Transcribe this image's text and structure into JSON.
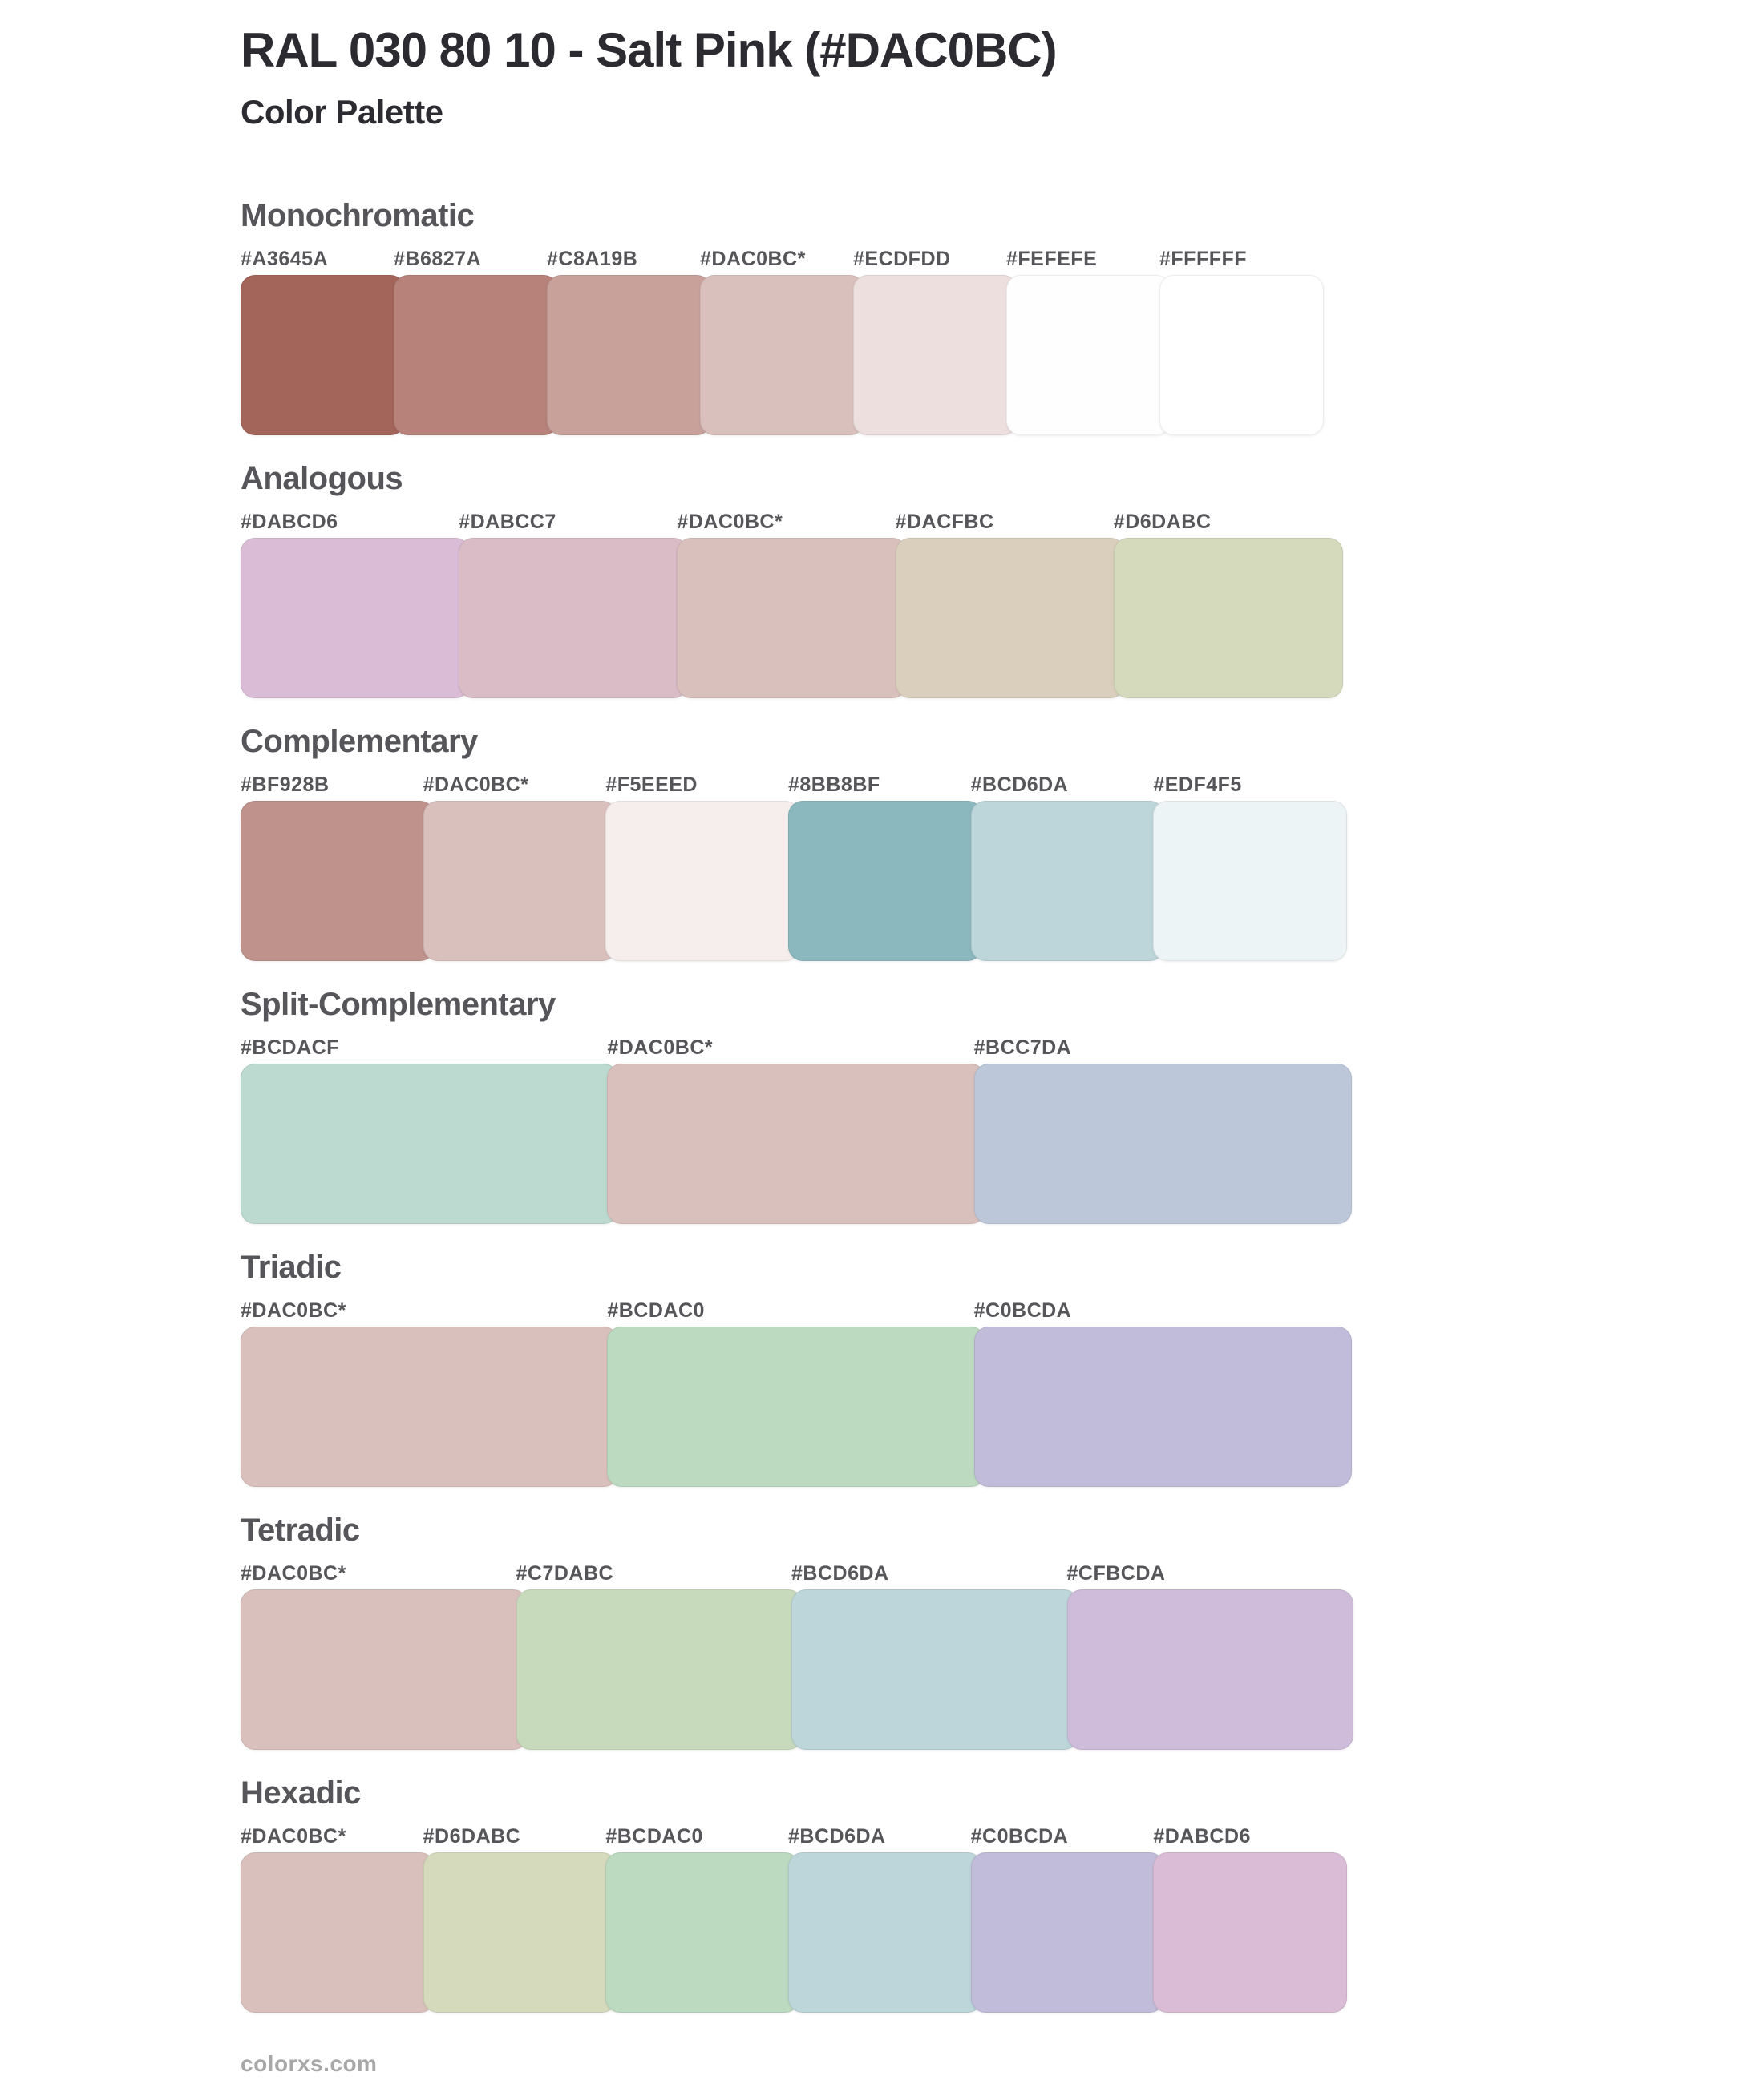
{
  "header": {
    "title": "RAL 030 80 10 - Salt Pink (#DAC0BC)",
    "subtitle": "Color Palette"
  },
  "base_color": "#DAC0BC",
  "sections": [
    {
      "name": "Monochromatic",
      "colors": [
        {
          "label": "#A3645A",
          "hex": "#A3645A"
        },
        {
          "label": "#B6827A",
          "hex": "#B6827A"
        },
        {
          "label": "#C8A19B",
          "hex": "#C8A19B"
        },
        {
          "label": "#DAC0BC*",
          "hex": "#DAC0BC"
        },
        {
          "label": "#ECDFDD",
          "hex": "#ECDFDD"
        },
        {
          "label": "#FEFEFE",
          "hex": "#FEFEFE"
        },
        {
          "label": "#FFFFFF",
          "hex": "#FFFFFF"
        }
      ]
    },
    {
      "name": "Analogous",
      "colors": [
        {
          "label": "#DABCD6",
          "hex": "#DABCD6"
        },
        {
          "label": "#DABCC7",
          "hex": "#DABCC7"
        },
        {
          "label": "#DAC0BC*",
          "hex": "#DAC0BC"
        },
        {
          "label": "#DACFBC",
          "hex": "#DACFBC"
        },
        {
          "label": "#D6DABC",
          "hex": "#D6DABC"
        }
      ]
    },
    {
      "name": "Complementary",
      "colors": [
        {
          "label": "#BF928B",
          "hex": "#BF928B"
        },
        {
          "label": "#DAC0BC*",
          "hex": "#DAC0BC"
        },
        {
          "label": "#F5EEED",
          "hex": "#F5EEED"
        },
        {
          "label": "#8BB8BF",
          "hex": "#8BB8BF"
        },
        {
          "label": "#BCD6DA",
          "hex": "#BCD6DA"
        },
        {
          "label": "#EDF4F5",
          "hex": "#EDF4F5"
        }
      ]
    },
    {
      "name": "Split-Complementary",
      "colors": [
        {
          "label": "#BCDACF",
          "hex": "#BCDACF"
        },
        {
          "label": "#DAC0BC*",
          "hex": "#DAC0BC"
        },
        {
          "label": "#BCC7DA",
          "hex": "#BCC7DA"
        }
      ]
    },
    {
      "name": "Triadic",
      "colors": [
        {
          "label": "#DAC0BC*",
          "hex": "#DAC0BC"
        },
        {
          "label": "#BCDAC0",
          "hex": "#BCDAC0"
        },
        {
          "label": "#C0BCDA",
          "hex": "#C0BCDA"
        }
      ]
    },
    {
      "name": "Tetradic",
      "colors": [
        {
          "label": "#DAC0BC*",
          "hex": "#DAC0BC"
        },
        {
          "label": "#C7DABC",
          "hex": "#C7DABC"
        },
        {
          "label": "#BCD6DA",
          "hex": "#BCD6DA"
        },
        {
          "label": "#CFBCDA",
          "hex": "#CFBCDA"
        }
      ]
    },
    {
      "name": "Hexadic",
      "colors": [
        {
          "label": "#DAC0BC*",
          "hex": "#DAC0BC"
        },
        {
          "label": "#D6DABC",
          "hex": "#D6DABC"
        },
        {
          "label": "#BCDAC0",
          "hex": "#BCDAC0"
        },
        {
          "label": "#BCD6DA",
          "hex": "#BCD6DA"
        },
        {
          "label": "#C0BCDA",
          "hex": "#C0BCDA"
        },
        {
          "label": "#DABCD6",
          "hex": "#DABCD6"
        }
      ]
    }
  ],
  "footer": {
    "text": "colorxs.com"
  },
  "ui_colors": {
    "title_text": "#2B2B31",
    "heading_text": "#56565A",
    "hex_label_text": "#56565A",
    "footer_text": "#A7A7A7",
    "background": "#FFFFFF"
  }
}
